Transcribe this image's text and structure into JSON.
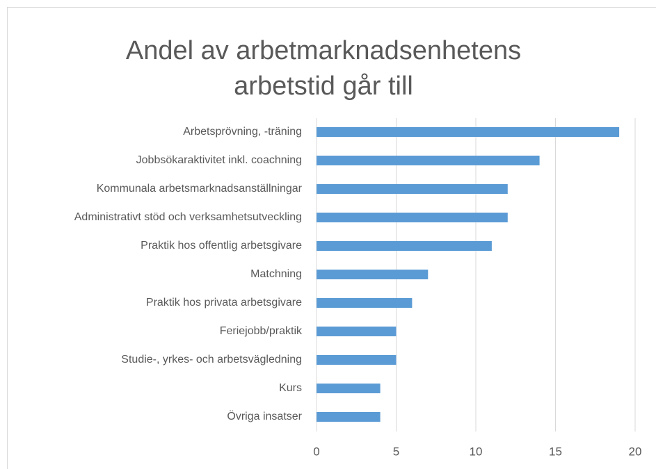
{
  "chart_data": {
    "type": "barh",
    "title": [
      "Andel av arbetmarknadsenhetens",
      "arbetstid går till"
    ],
    "categories": [
      "Arbetsprövning, -träning",
      "Jobbsökaraktivitet inkl. coachning",
      "Kommunala arbetsmarknadsanställningar",
      "Administrativt stöd och verksamhetsutveckling",
      "Praktik hos offentlig arbetsgivare",
      "Matchning",
      "Praktik hos privata arbetsgivare",
      "Feriejobb/praktik",
      "Studie-, yrkes- och arbetsvägledning",
      "Kurs",
      "Övriga insatser"
    ],
    "values": [
      19,
      14,
      12,
      12,
      11,
      7,
      6,
      5,
      5,
      4,
      4
    ],
    "color": "#5b9bd5",
    "xlim": [
      0,
      20
    ],
    "xticks": [
      0,
      5,
      10,
      15,
      20
    ],
    "grid": true
  }
}
